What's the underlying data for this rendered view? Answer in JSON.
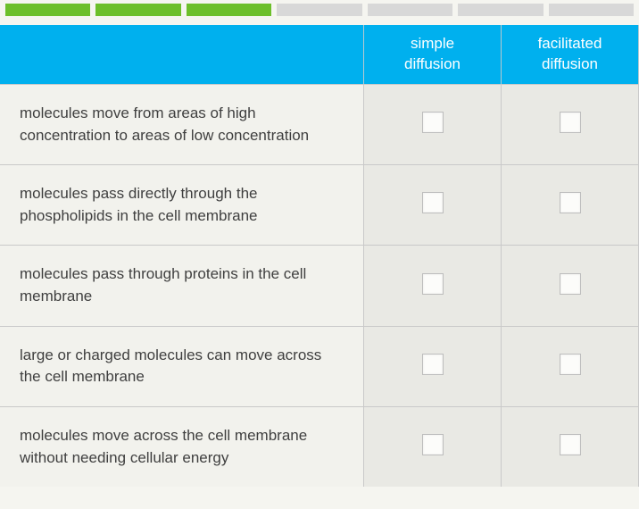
{
  "progress": {
    "segments": [
      {
        "state": "done"
      },
      {
        "state": "done"
      },
      {
        "state": "done"
      },
      {
        "state": "pending"
      },
      {
        "state": "pending"
      },
      {
        "state": "pending"
      },
      {
        "state": "pending"
      }
    ],
    "done_color": "#6cbf2a",
    "pending_color": "#d8d8d8"
  },
  "table": {
    "header_bg": "#00b0ee",
    "header_text_color": "#ffffff",
    "columns": [
      {
        "label": "simple\ndiffusion"
      },
      {
        "label": "facilitated\ndiffusion"
      }
    ],
    "rows": [
      {
        "description": "molecules move from areas of high concentration to areas of low concentration",
        "checks": [
          false,
          false
        ]
      },
      {
        "description": "molecules pass directly through the phospholipids in the cell membrane",
        "checks": [
          false,
          false
        ]
      },
      {
        "description": "molecules pass through proteins in the cell membrane",
        "checks": [
          false,
          false
        ]
      },
      {
        "description": "large or charged molecules can move across the cell membrane",
        "checks": [
          false,
          false
        ]
      },
      {
        "description": "molecules move across the cell membrane without needing cellular energy",
        "checks": [
          false,
          false
        ]
      }
    ],
    "desc_bg": "#f2f2ed",
    "check_bg": "#e9e9e4",
    "checkbox_bg": "#fcfcfa",
    "checkbox_border": "#bdbdbd",
    "font_family": "Arial",
    "desc_fontsize": 17,
    "header_fontsize": 17
  }
}
